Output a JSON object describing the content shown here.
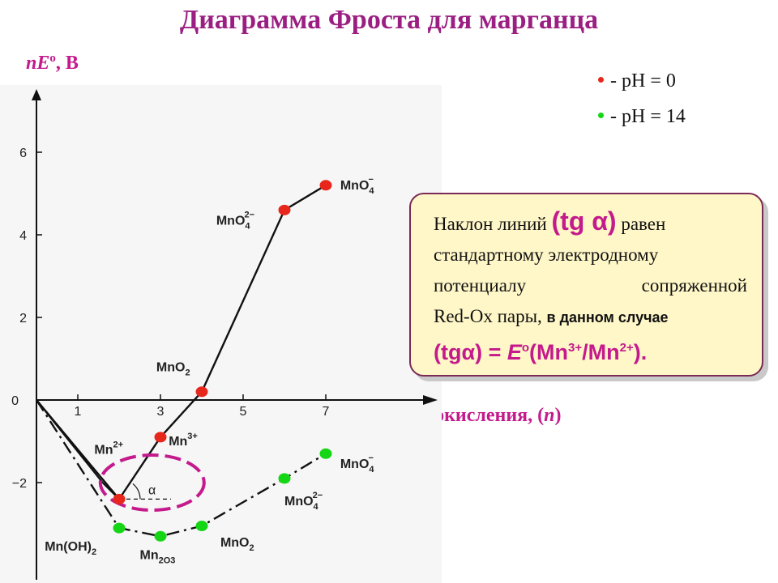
{
  "title": "Диаграмма Фроста для марганца",
  "y_unit": {
    "symbol": "nE",
    "sup": "o",
    "rest": ", В"
  },
  "x_label": {
    "text": "степень окисления, (",
    "var": "n",
    "close": ")"
  },
  "legend": [
    {
      "label": "- pH = 0",
      "color": "#e8271c"
    },
    {
      "label": "- pH = 14",
      "color": "#14d614"
    }
  ],
  "callout": {
    "line1_a": "Наклон линий ",
    "line1_tg": "(tg α)",
    "line1_b": " равен",
    "line2": "стандартному электродному",
    "line3_a": "потенциалу",
    "line3_b": "сопряженной",
    "line4_a": "Red-Ox пары, ",
    "line4_b": "в данном случае",
    "f_a": "(tgα) = ",
    "f_E": "E",
    "f_o": "o",
    "f_b": "(Mn",
    "f_3": "3+",
    "f_c": "/Mn",
    "f_2": "2+",
    "f_d": ")."
  },
  "alpha_label": "α",
  "chart_data": {
    "type": "line",
    "xlabel": "степень окисления, (n)",
    "ylabel": "nE°, В",
    "xlim": [
      0,
      9.5
    ],
    "ylim": [
      -3.9,
      7.5
    ],
    "x_ticks": [
      1,
      3,
      5,
      7
    ],
    "x_tick_labels": [
      "1",
      "3",
      "5",
      "7"
    ],
    "y_ticks": [
      -2,
      0,
      2,
      4,
      6
    ],
    "y_tick_labels": [
      "−2",
      "0",
      "2",
      "4",
      "6"
    ],
    "origin_label": "0",
    "series": [
      {
        "name": "pH = 0",
        "style": "solid",
        "color": "#e8271c",
        "points": [
          {
            "x": 0,
            "y": 0,
            "marker": false
          },
          {
            "x": 2,
            "y": -2.4,
            "marker": true,
            "label": "Mn2+"
          },
          {
            "x": 3,
            "y": -0.9,
            "marker": true,
            "label": "Mn3+"
          },
          {
            "x": 4,
            "y": 0.2,
            "marker": true,
            "label": "MnO2"
          },
          {
            "x": 6,
            "y": 4.6,
            "marker": true,
            "label": "MnO4 2-"
          },
          {
            "x": 7,
            "y": 5.2,
            "marker": true,
            "label": "MnO4 -"
          }
        ]
      },
      {
        "name": "pH = 14",
        "style": "dash-dot",
        "color": "#14d614",
        "points": [
          {
            "x": 0,
            "y": 0,
            "marker": false
          },
          {
            "x": 2,
            "y": -3.1,
            "marker": true,
            "label": "Mn(OH)2"
          },
          {
            "x": 3,
            "y": -3.3,
            "marker": true,
            "label": "Mn2O3"
          },
          {
            "x": 4,
            "y": -3.05,
            "marker": true,
            "label": "MnO2"
          },
          {
            "x": 6,
            "y": -1.9,
            "marker": true,
            "label": "MnO4 2-"
          },
          {
            "x": 7,
            "y": -1.3,
            "marker": true,
            "label": "MnO4 -"
          }
        ]
      }
    ],
    "extra_segments": [
      {
        "from": {
          "x": 0,
          "y": 0
        },
        "to": {
          "x": 1.6,
          "y": -2.0
        },
        "style": "solid"
      },
      {
        "from": {
          "x": 1.6,
          "y": -2.0
        },
        "to": {
          "x": 2,
          "y": -2.4
        },
        "style": "solid"
      },
      {
        "from": {
          "x": 0,
          "y": 0
        },
        "to": {
          "x": 2,
          "y": -2.4
        },
        "style": "dashed"
      }
    ],
    "species_labels": [
      {
        "formula": "Mn",
        "sup": "2+",
        "sub": "",
        "x": 1.4,
        "y": -1.3
      },
      {
        "formula": "Mn",
        "sup": "3+",
        "sub": "",
        "x": 3.2,
        "y": -1.1
      },
      {
        "formula": "MnO",
        "sup": "",
        "sub": "2",
        "x": 2.9,
        "y": 0.7
      },
      {
        "formula": "MnO",
        "sup": "2−",
        "sub": "4",
        "x": 4.35,
        "y": 4.25
      },
      {
        "formula": "MnO",
        "sup": "−",
        "sub": "4",
        "x": 7.35,
        "y": 5.1
      },
      {
        "formula": "Mn(OH)",
        "sup": "",
        "sub": "2",
        "x": 0.2,
        "y": -3.65
      },
      {
        "formula": "Mn",
        "sup": "",
        "sub": "2O3",
        "x": 2.5,
        "y": -3.85
      },
      {
        "formula": "MnO",
        "sup": "",
        "sub": "2",
        "x": 4.45,
        "y": -3.55
      },
      {
        "formula": "MnO",
        "sup": "2−",
        "sub": "4",
        "x": 6.0,
        "y": -2.55
      },
      {
        "formula": "MnO",
        "sup": "−",
        "sub": "4",
        "x": 7.35,
        "y": -1.65
      }
    ],
    "highlight": {
      "center": {
        "x": 2.8,
        "y": -2.0
      },
      "color": "#c41a8c"
    }
  }
}
